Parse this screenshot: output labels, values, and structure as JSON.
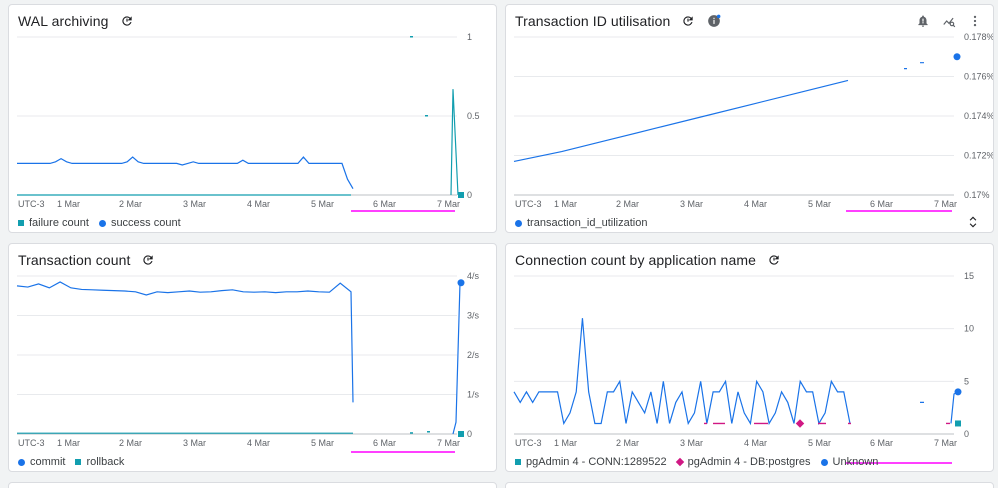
{
  "colors": {
    "blue": "#1a73e8",
    "teal": "#129eaf",
    "magenta": "#d01884",
    "annotation": "#ff00ff",
    "grid": "#e8eaed",
    "text": "#202124",
    "muted": "#5f6368"
  },
  "icons": {
    "refresh": "refresh-icon",
    "info": "info-icon",
    "alert": "alert-bell-icon",
    "explore": "explore-chart-icon",
    "more": "more-vert-icon",
    "expand": "unfold-icon"
  },
  "panels": {
    "wal": {
      "title": "WAL archiving",
      "legend": [
        {
          "label": "failure count",
          "marker": "square",
          "color": "#129eaf"
        },
        {
          "label": "success count",
          "marker": "dot",
          "color": "#1a73e8"
        }
      ]
    },
    "txid": {
      "title": "Transaction ID utilisation",
      "legend": [
        {
          "label": "transaction_id_utilization",
          "marker": "dot",
          "color": "#1a73e8"
        }
      ]
    },
    "txcount": {
      "title": "Transaction count",
      "legend": [
        {
          "label": "commit",
          "marker": "dot",
          "color": "#1a73e8"
        },
        {
          "label": "rollback",
          "marker": "square",
          "color": "#129eaf"
        }
      ]
    },
    "conn": {
      "title": "Connection count by application name",
      "legend": [
        {
          "label": "pgAdmin 4 - CONN:1289522",
          "marker": "square",
          "color": "#129eaf"
        },
        {
          "label": "pgAdmin 4 - DB:postgres",
          "marker": "diamond",
          "color": "#d01884"
        },
        {
          "label": "Unknown",
          "marker": "dot",
          "color": "#1a73e8"
        }
      ]
    }
  },
  "chart_data": [
    {
      "id": "wal",
      "type": "line",
      "title": "WAL archiving",
      "timezone": "UTC-3",
      "x_ticks": [
        "1 Mar",
        "2 Mar",
        "3 Mar",
        "4 Mar",
        "5 Mar",
        "6 Mar",
        "7 Mar"
      ],
      "y_ticks": [
        "0",
        "0.5",
        "1"
      ],
      "ylim": [
        0,
        1
      ],
      "series": [
        {
          "name": "success count",
          "values": [
            0.2,
            0.2,
            0.2,
            0.2,
            0.2,
            0.2,
            0.2,
            0.21,
            0.23,
            0.21,
            0.2,
            0.2,
            0.2,
            0.2,
            0.2,
            0.2,
            0.2,
            0.2,
            0.2,
            0.2,
            0.21,
            0.24,
            0.21,
            0.2,
            0.2,
            0.2,
            0.2,
            0.2,
            0.2,
            0.2,
            0.19,
            0.2,
            0.21,
            0.2,
            0.2,
            0.2,
            0.2,
            0.2,
            0.2,
            0.2,
            0.2,
            0.22,
            0.2,
            0.2,
            0.2,
            0.2,
            0.2,
            0.2,
            0.2,
            0.2,
            0.2,
            0.2,
            0.24,
            0.2,
            0.2,
            0.2,
            0.2,
            0.2,
            0.2,
            0.2,
            0.1,
            0.04
          ]
        },
        {
          "name": "failure count",
          "values": [
            0,
            0,
            0,
            0,
            0,
            0,
            0.67,
            0
          ]
        }
      ]
    },
    {
      "id": "txid",
      "type": "line",
      "title": "Transaction ID utilisation",
      "timezone": "UTC-3",
      "x_ticks": [
        "1 Mar",
        "2 Mar",
        "3 Mar",
        "4 Mar",
        "5 Mar",
        "6 Mar",
        "7 Mar"
      ],
      "y_ticks": [
        "0.17%",
        "0.172%",
        "0.174%",
        "0.176%",
        "0.178%"
      ],
      "ylim": [
        0.17,
        0.178
      ],
      "series": [
        {
          "name": "transaction_id_utilization",
          "values": [
            0.1717,
            0.1722,
            0.1728,
            0.1734,
            0.174,
            0.1746,
            0.1752,
            0.1758,
            0.1764,
            0.1767,
            0.177
          ]
        }
      ]
    },
    {
      "id": "txcount",
      "type": "line",
      "title": "Transaction count",
      "timezone": "UTC-3",
      "x_ticks": [
        "1 Mar",
        "2 Mar",
        "3 Mar",
        "4 Mar",
        "5 Mar",
        "6 Mar",
        "7 Mar"
      ],
      "y_ticks": [
        "0",
        "1/s",
        "2/s",
        "3/s",
        "4/s"
      ],
      "ylim": [
        0,
        4
      ],
      "series": [
        {
          "name": "commit",
          "values": [
            3.75,
            3.72,
            3.8,
            3.7,
            3.85,
            3.7,
            3.66,
            3.65,
            3.64,
            3.63,
            3.62,
            3.6,
            3.52,
            3.6,
            3.58,
            3.6,
            3.62,
            3.59,
            3.6,
            3.63,
            3.65,
            3.6,
            3.59,
            3.6,
            3.58,
            3.6,
            3.6,
            3.62,
            3.6,
            3.59,
            3.82,
            3.6,
            0.8,
            0,
            0,
            0,
            0,
            0.1,
            3.83
          ]
        },
        {
          "name": "rollback",
          "values": [
            0,
            0,
            0,
            0,
            0,
            0,
            0,
            0,
            0,
            0,
            0,
            0.01
          ]
        }
      ]
    },
    {
      "id": "conn",
      "type": "line",
      "title": "Connection count by application name",
      "timezone": "UTC-3",
      "x_ticks": [
        "1 Mar",
        "2 Mar",
        "3 Mar",
        "4 Mar",
        "5 Mar",
        "6 Mar",
        "7 Mar"
      ],
      "y_ticks": [
        "0",
        "5",
        "10",
        "15"
      ],
      "ylim": [
        0,
        15
      ],
      "series": [
        {
          "name": "Unknown",
          "values": [
            4,
            3,
            4,
            3,
            4,
            4,
            4,
            4,
            1,
            2,
            4,
            11,
            4,
            1,
            1,
            4,
            4,
            5,
            1,
            4,
            3,
            2,
            4,
            1,
            5,
            1,
            3,
            4,
            1,
            2,
            5,
            1,
            4,
            4,
            5,
            1,
            4,
            2,
            1,
            5,
            4,
            1,
            2,
            4,
            3,
            1,
            5,
            4,
            4,
            1,
            2,
            5,
            4,
            4,
            1
          ]
        },
        {
          "name": "pgAdmin 4 - CONN:1289522",
          "values": [
            1
          ]
        },
        {
          "name": "pgAdmin 4 - DB:postgres",
          "values": [
            1
          ]
        }
      ]
    }
  ]
}
